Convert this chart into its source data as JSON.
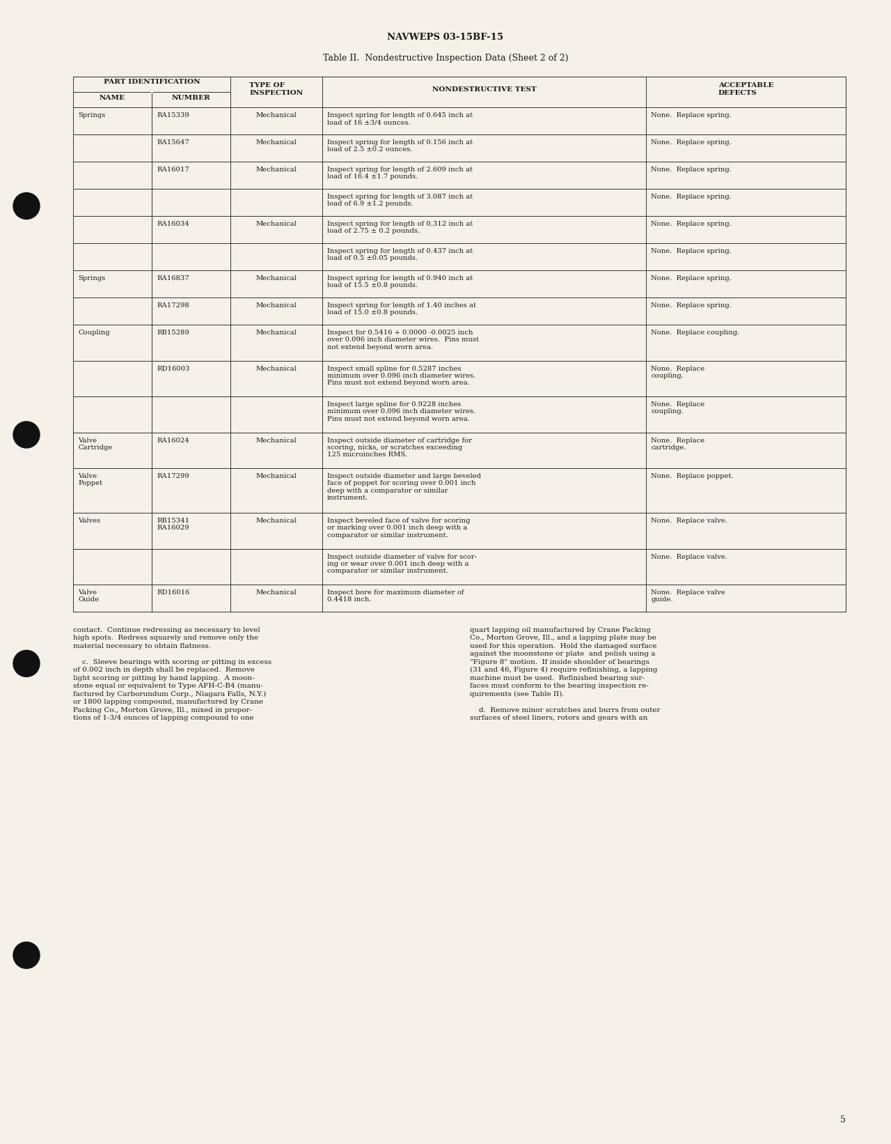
{
  "page_header": "NAVWEPS 03-15BF-15",
  "table_title": "Table II.  Nondestructive Inspection Data (Sheet 2 of 2)",
  "page_number": "5",
  "background_color": "#f5f0e8",
  "text_color": "#1a1a1a",
  "table_rows": [
    {
      "name": "Springs",
      "number": "RA15339",
      "inspection": "Mechanical",
      "test": "Inspect spring for length of 0.645 inch at\nload of 16 ±3/4 ounces.",
      "defects": "None.  Replace spring."
    },
    {
      "name": "",
      "number": "RA15647",
      "inspection": "Mechanical",
      "test": "Inspect spring for length of 0.156 inch at\nload of 2.5 ±0.2 ounces.",
      "defects": "None.  Replace spring."
    },
    {
      "name": "",
      "number": "RA16017",
      "inspection": "Mechanical",
      "test": "Inspect spring for length of 2.609 inch at\nload of 16.4 ±1.7 pounds.",
      "defects": "None.  Replace spring."
    },
    {
      "name": "",
      "number": "",
      "inspection": "",
      "test": "Inspect spring for length of 3.087 inch at\nload of 6.9 ±1.2 pounds.",
      "defects": "None.  Replace spring."
    },
    {
      "name": "",
      "number": "RA16034",
      "inspection": "Mechanical",
      "test": "Inspect spring for length of 0.312 inch at\nload of 2.75 ± 0.2 pounds.",
      "defects": "None.  Replace spring."
    },
    {
      "name": "",
      "number": "",
      "inspection": "",
      "test": "Inspect spring for length of 0.437 inch at\nload of 0.5 ±0.05 pounds.",
      "defects": "None.  Replace spring."
    },
    {
      "name": "Springs",
      "number": "RA16837",
      "inspection": "Mechanical",
      "test": "Inspect spring for length of 0.940 inch at\nload of 15.5 ±0.8 pounds.",
      "defects": "None.  Replace spring."
    },
    {
      "name": "",
      "number": "RA17298",
      "inspection": "Mechanical",
      "test": "Inspect spring for length of 1.40 inches at\nload of 15.0 ±0.8 pounds.",
      "defects": "None.  Replace spring."
    },
    {
      "name": "Coupling",
      "number": "RB15289",
      "inspection": "Mechanical",
      "test": "Inspect for 0.5416 + 0.0000 -0.0025 inch\nover 0.096 inch diameter wires.  Pins must\nnot extend beyond worn area.",
      "defects": "None.  Replace coupling."
    },
    {
      "name": "",
      "number": "RD16003",
      "inspection": "Mechanical",
      "test": "Inspect small spline for 0.5287 inches\nminimum over 0.096 inch diameter wires.\nPins must not extend beyond worn area.",
      "defects": "None.  Replace\ncoupling."
    },
    {
      "name": "",
      "number": "",
      "inspection": "",
      "test": "Inspect large spline for 0.9228 inches\nminimum over 0.096 inch diameter wires.\nPins must not extend beyond worn area.",
      "defects": "None.  Replace\ncoupling."
    },
    {
      "name": "Valve\nCartridge",
      "number": "RA16024",
      "inspection": "Mechanical",
      "test": "Inspect outside diameter of cartridge for\nscoring, nicks, or scratches exceeding\n125 microinches RMS.",
      "defects": "None.  Replace\ncartridge."
    },
    {
      "name": "Valve\nPoppet",
      "number": "RA17299",
      "inspection": "Mechanical",
      "test": "Inspect outside diameter and large beveled\nface of poppet for scoring over 0.001 inch\ndeep with a comparator or similar\ninstrument.",
      "defects": "None.  Replace poppet."
    },
    {
      "name": "Valves",
      "number": "RB15341\nRA16029",
      "inspection": "Mechanical",
      "test": "Inspect beveled face of valve for scoring\nor marking over 0.001 inch deep with a\ncomparator or similar instrument.",
      "defects": "None.  Replace valve."
    },
    {
      "name": "",
      "number": "",
      "inspection": "",
      "test": "Inspect outside diameter of valve for scor-\ning or wear over 0.001 inch deep with a\ncomparator or similar instrument.",
      "defects": "None.  Replace valve."
    },
    {
      "name": "Valve\nGuide",
      "number": "RD16016",
      "inspection": "Mechanical",
      "test": "Inspect bore for maximum diameter of\n0.4418 inch.",
      "defects": "None.  Replace valve\nguide."
    }
  ],
  "footer_left": "contact.  Continue redressing as necessary to level\nhigh spots.  Redress squarely and remove only the\nmaterial necessary to obtain flatness.\n\n    c.  Sleeve bearings with scoring or pitting in excess\nof 0.002 inch in depth shall be replaced.  Remove\nlight scoring or pitting by hand lapping.  A moon-\nstone equal or equivalent to Type AFH-C-B4 (manu-\nfactured by Carborundum Corp., Niagara Falls, N.Y.)\nor 1800 lapping compound, manufactured by Crane\nPacking Co., Morton Grove, Ill., mixed in propor-\ntions of 1-3/4 ounces of lapping compound to one",
  "footer_right": "quart lapping oil manufactured by Crane Packing\nCo., Morton Grove, Ill., and a lapping plate may be\nused for this operation.  Hold the damaged surface\nagainst the moonstone or plate  and polish using a\n\"Figure 8\" motion.  If inside shoulder of bearings\n(31 and 46, Figure 4) require refinishing, a lapping\nmachine must be used.  Refinished bearing sur-\nfaces must conform to the bearing inspection re-\nquirements (see Table II).\n\n    d.  Remove minor scratches and burrs from outer\nsurfaces of steel liners, rotors and gears with an"
}
